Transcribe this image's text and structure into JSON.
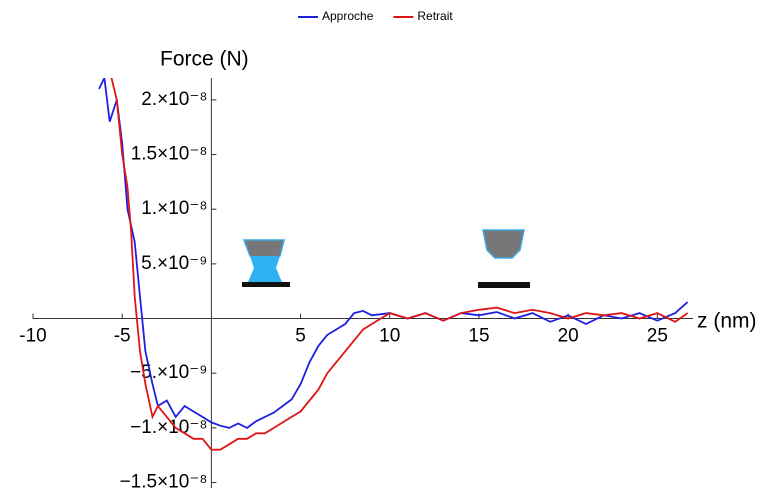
{
  "chart_data": {
    "type": "line",
    "xlabel": "z (nm)",
    "ylabel": "Force (N)",
    "xlim": [
      -10,
      27
    ],
    "ylim": [
      -1.55e-08,
      2.2e-08
    ],
    "xticks": [
      -10,
      -5,
      5,
      10,
      15,
      20,
      25
    ],
    "yticks": [
      {
        "value": 2e-08,
        "label": "2.×10⁻⁸"
      },
      {
        "value": 1.5e-08,
        "label": "1.5×10⁻⁸"
      },
      {
        "value": 1e-08,
        "label": "1.×10⁻⁸"
      },
      {
        "value": 5e-09,
        "label": "5.×10⁻⁹"
      },
      {
        "value": -5e-09,
        "label": "−5.×10⁻⁹"
      },
      {
        "value": -1e-08,
        "label": "−1.×10⁻⁸"
      },
      {
        "value": -1.5e-08,
        "label": "−1.5×10⁻⁸"
      }
    ],
    "series": [
      {
        "name": "Approche",
        "color": "#1f1fe0",
        "x": [
          -6.3,
          -6,
          -5.7,
          -5.3,
          -5,
          -4.7,
          -4.3,
          -4,
          -3.7,
          -3.3,
          -3,
          -2.5,
          -2,
          -1.5,
          -1,
          -0.5,
          0,
          0.5,
          1,
          1.5,
          2,
          2.5,
          3,
          3.5,
          4,
          4.5,
          5,
          5.5,
          6,
          6.5,
          7,
          7.5,
          8,
          8.5,
          9,
          10,
          11,
          12,
          13,
          14,
          15,
          16,
          17,
          18,
          19,
          20,
          21,
          22,
          23,
          24,
          25,
          26,
          26.7
        ],
        "values": [
          2.1e-08,
          2.2e-08,
          1.8e-08,
          2e-08,
          1.6e-08,
          1e-08,
          7e-09,
          2e-09,
          -3e-09,
          -6e-09,
          -8e-09,
          -7.5e-09,
          -9e-09,
          -8e-09,
          -8.5e-09,
          -9e-09,
          -9.5e-09,
          -9.8e-09,
          -1e-08,
          -9.6e-09,
          -1e-08,
          -9.4e-09,
          -9e-09,
          -8.6e-09,
          -8e-09,
          -7.4e-09,
          -6e-09,
          -4e-09,
          -2.5e-09,
          -1.5e-09,
          -1e-09,
          -5e-10,
          5e-10,
          7e-10,
          3e-10,
          5e-10,
          0,
          5e-10,
          -2e-10,
          5e-10,
          3e-10,
          6e-10,
          0,
          5e-10,
          -3e-10,
          3e-10,
          -5e-10,
          3e-10,
          0,
          5e-10,
          -2e-10,
          5e-10,
          1.5e-09
        ]
      },
      {
        "name": "Retrait",
        "color": "#e01515",
        "x": [
          -5.6,
          -5.3,
          -5,
          -4.7,
          -4.5,
          -4.3,
          -4,
          -3.7,
          -3.3,
          -3,
          -2.5,
          -2,
          -1.5,
          -1,
          -0.5,
          0,
          0.5,
          1,
          1.5,
          2,
          2.5,
          3,
          3.5,
          4,
          4.5,
          5,
          5.5,
          6,
          6.5,
          7,
          7.5,
          8,
          8.5,
          9,
          9.5,
          10,
          11,
          12,
          13,
          14,
          15,
          16,
          17,
          18,
          19,
          20,
          21,
          22,
          23,
          24,
          25,
          26,
          26.7
        ],
        "values": [
          2.2e-08,
          2e-08,
          1.5e-08,
          1.2e-08,
          8e-09,
          2e-09,
          -3e-09,
          -6e-09,
          -9e-09,
          -8e-09,
          -9e-09,
          -1e-08,
          -1.05e-08,
          -1.1e-08,
          -1.1e-08,
          -1.2e-08,
          -1.2e-08,
          -1.15e-08,
          -1.1e-08,
          -1.1e-08,
          -1.05e-08,
          -1.05e-08,
          -1e-08,
          -9.5e-09,
          -9e-09,
          -8.5e-09,
          -7.5e-09,
          -6.5e-09,
          -5e-09,
          -4e-09,
          -3e-09,
          -2e-09,
          -1e-09,
          -5e-10,
          0,
          5e-10,
          0,
          5e-10,
          -2e-10,
          5e-10,
          8e-10,
          1e-09,
          5e-10,
          8e-10,
          5e-10,
          0,
          5e-10,
          3e-10,
          5e-10,
          0,
          5e-10,
          -3e-10,
          5e-10
        ]
      }
    ]
  }
}
